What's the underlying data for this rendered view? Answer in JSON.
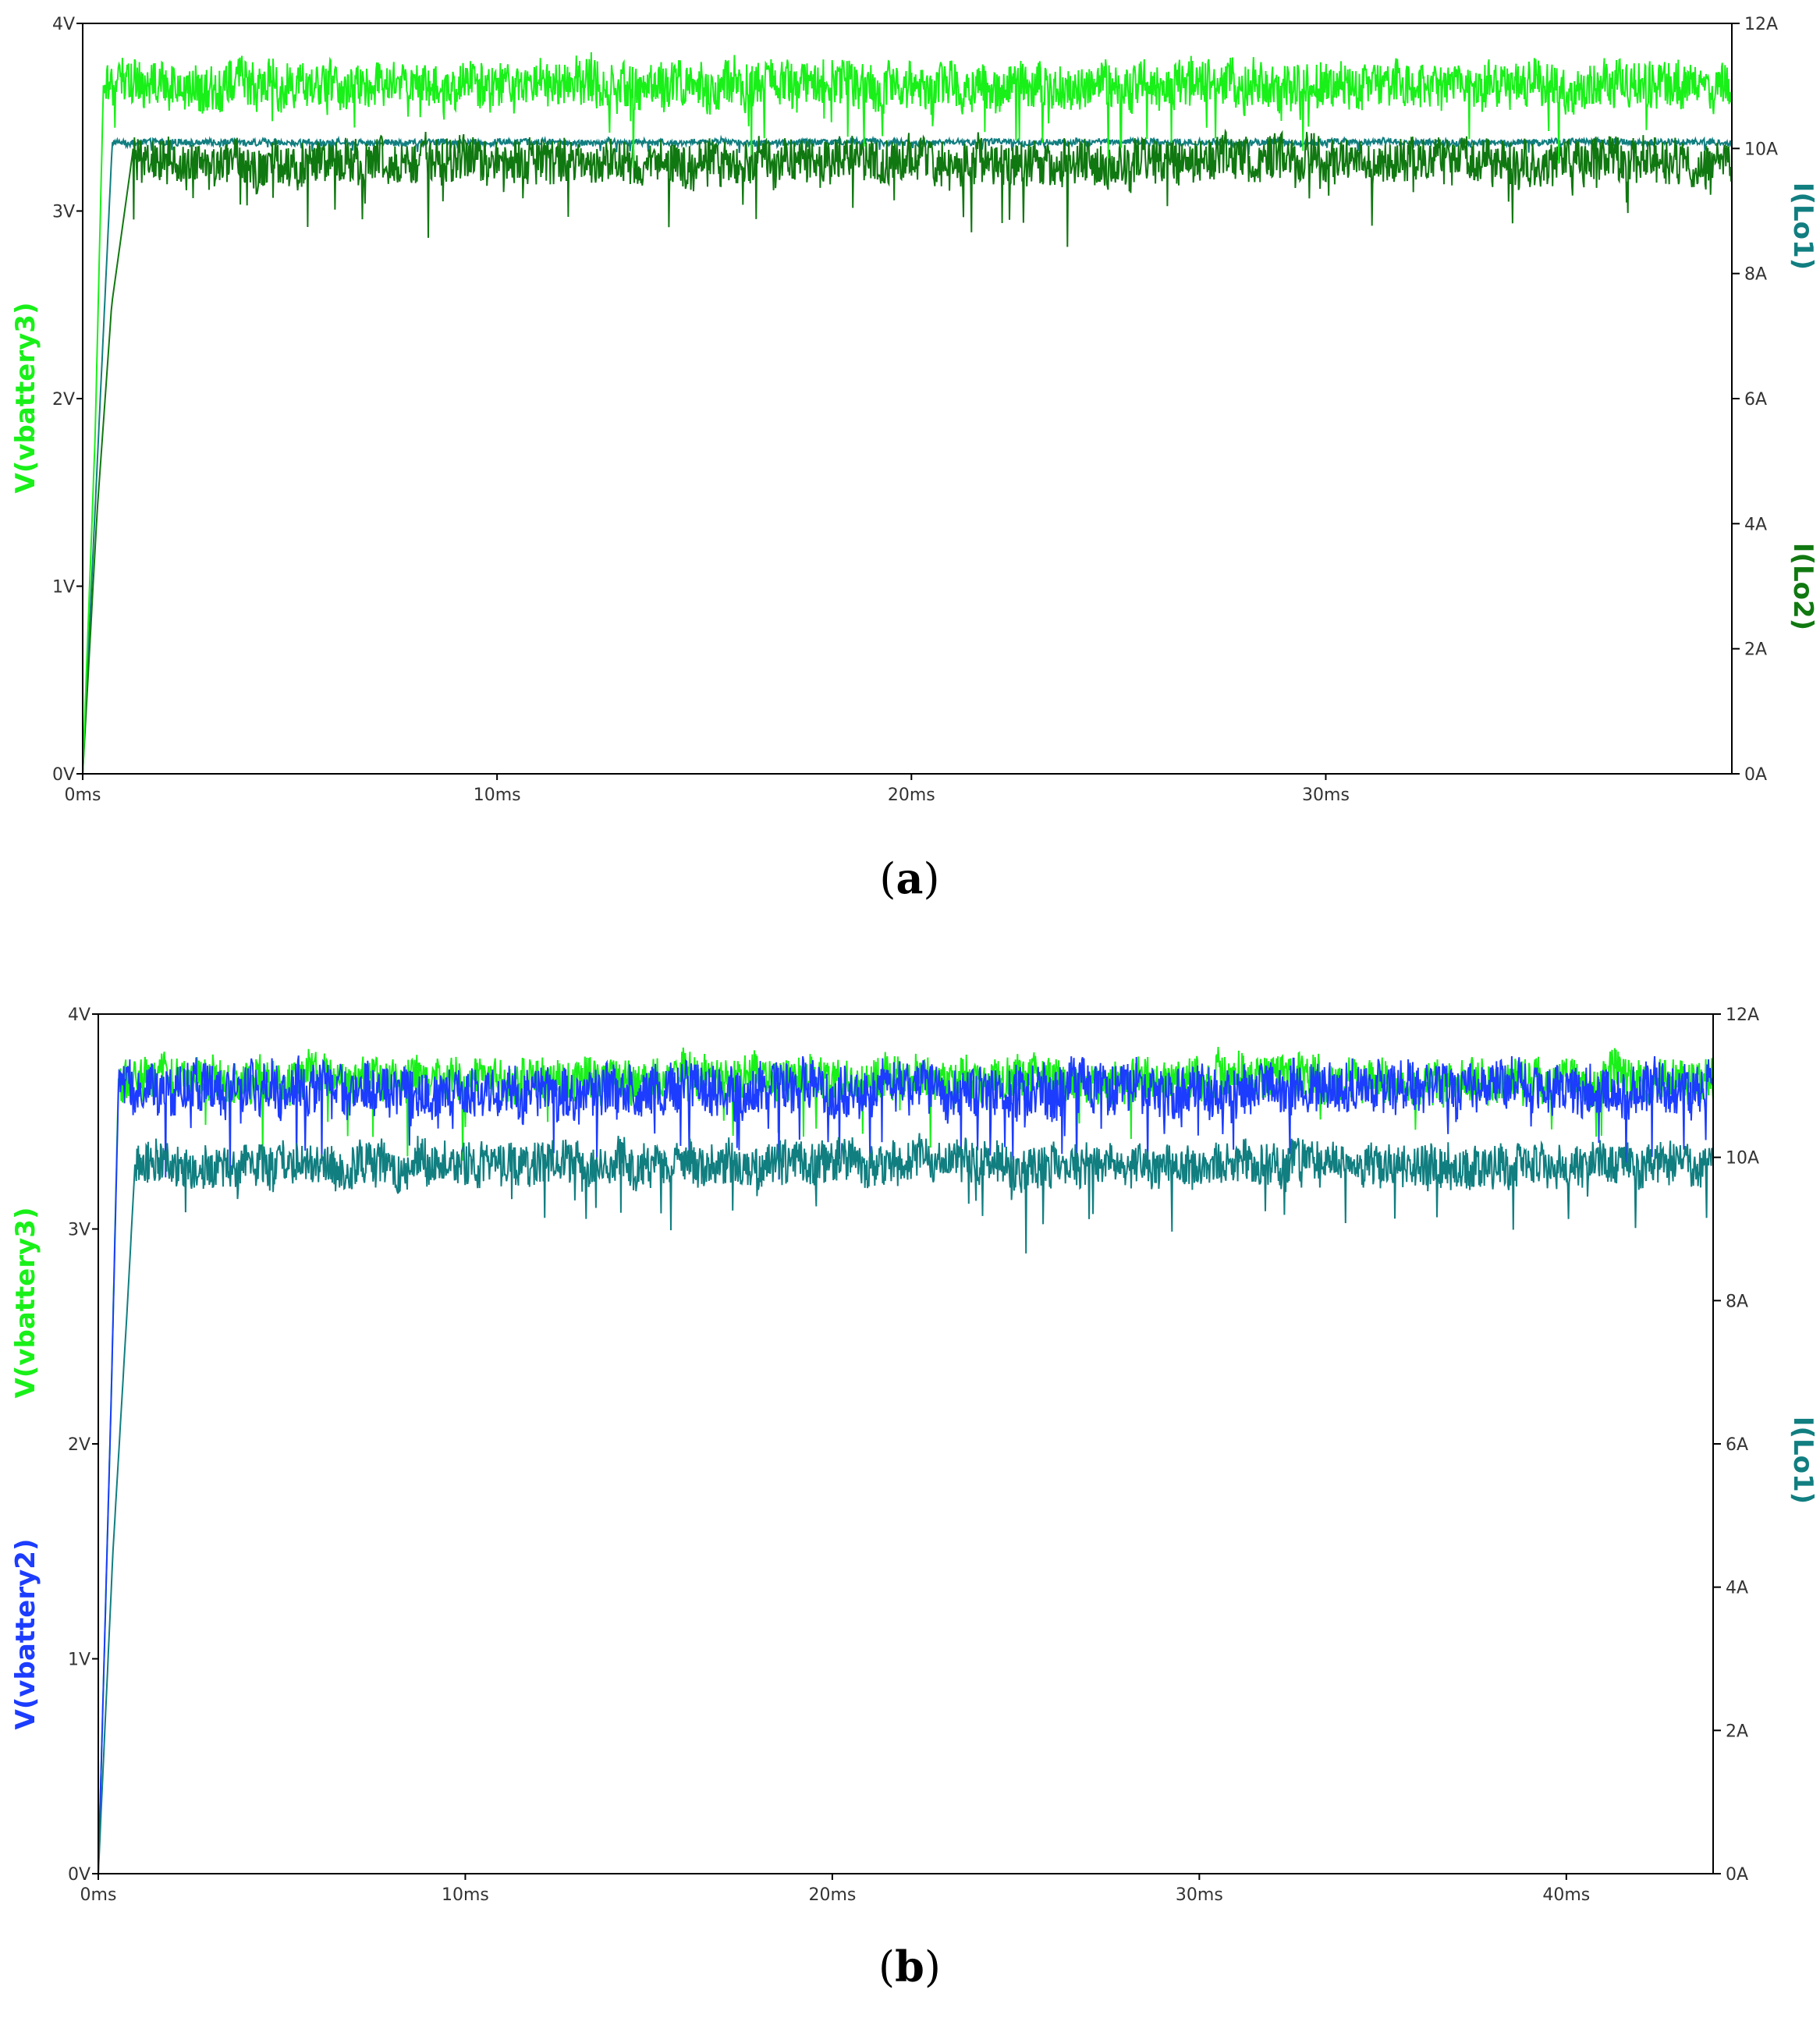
{
  "colors": {
    "vbattery3": "#19f019",
    "vbattery2": "#1c3cff",
    "lo1": "#117e80",
    "lo2": "#107810",
    "axis": "#000000"
  },
  "chart_data": [
    {
      "type": "line",
      "caption": "a",
      "x_ticks": [
        "0ms",
        "10ms",
        "20ms",
        "30ms"
      ],
      "y_left_ticks": [
        "0V",
        "1V",
        "2V",
        "3V",
        "4V"
      ],
      "y_right_ticks": [
        "0A",
        "2A",
        "4A",
        "6A",
        "8A",
        "10A",
        "12A"
      ],
      "xlim": [
        0,
        39.8
      ],
      "ylim_left": [
        0,
        4
      ],
      "ylim_right": [
        0,
        12
      ],
      "y_left_labels": [
        "V(vbattery3)"
      ],
      "y_right_labels": [
        "I(Lo1)",
        "I(Lo2)"
      ],
      "grid": false,
      "series": [
        {
          "name": "I(Lo1)",
          "axis": "right",
          "color_key": "lo1",
          "steady": 10.1,
          "noise": 0.05,
          "x": [
            0,
            0.7,
            0.72,
            39.8
          ],
          "y": [
            0,
            9.9,
            10.1,
            10.1
          ]
        },
        {
          "name": "I(Lo2)",
          "axis": "right",
          "color_key": "lo2",
          "steady": 9.8,
          "noise": 0.35,
          "x": [
            0,
            0.35,
            0.7,
            1.2,
            39.8
          ],
          "y": [
            0,
            4.2,
            7.5,
            9.9,
            9.8
          ]
        },
        {
          "name": "V(vbattery3)",
          "axis": "left",
          "color_key": "vbattery3",
          "steady": 3.67,
          "noise": 0.12,
          "x": [
            0,
            0.3,
            0.5,
            39.8
          ],
          "y": [
            0,
            1.8,
            3.67,
            3.67
          ]
        }
      ]
    },
    {
      "type": "line",
      "caption": "b",
      "x_ticks": [
        "0ms",
        "10ms",
        "20ms",
        "30ms",
        "40ms"
      ],
      "y_left_ticks": [
        "0V",
        "1V",
        "2V",
        "3V",
        "4V"
      ],
      "y_right_ticks": [
        "0A",
        "2A",
        "4A",
        "6A",
        "8A",
        "10A",
        "12A"
      ],
      "xlim": [
        0,
        44
      ],
      "ylim_left": [
        0,
        4
      ],
      "ylim_right": [
        0,
        12
      ],
      "y_left_labels": [
        "V(vbattery3)",
        "V(vbattery2)"
      ],
      "y_right_labels": [
        "I(Lo1)"
      ],
      "grid": false,
      "series": [
        {
          "name": "V(vbattery3)",
          "axis": "left",
          "color_key": "vbattery3",
          "steady": 3.7,
          "noise": 0.1,
          "x": [
            0,
            0.35,
            0.55,
            44
          ],
          "y": [
            0,
            2.2,
            3.7,
            3.7
          ]
        },
        {
          "name": "V(vbattery2)",
          "axis": "left",
          "color_key": "vbattery2",
          "steady": 3.65,
          "noise": 0.12,
          "x": [
            0,
            0.35,
            0.55,
            44
          ],
          "y": [
            0,
            2.2,
            3.65,
            3.65
          ]
        },
        {
          "name": "I(Lo1)",
          "axis": "right",
          "color_key": "lo1",
          "steady": 9.9,
          "noise": 0.3,
          "x": [
            0,
            0.4,
            0.8,
            1.0,
            44
          ],
          "y": [
            0,
            4.5,
            8.0,
            9.9,
            9.8
          ]
        }
      ]
    }
  ]
}
